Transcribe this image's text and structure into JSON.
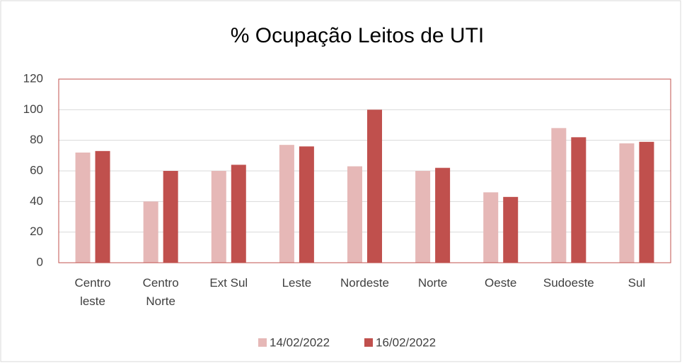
{
  "chart_data": {
    "type": "bar",
    "title": "% Ocupação Leitos de UTI",
    "categories": [
      "Centro leste",
      "Centro Norte",
      "Ext Sul",
      "Leste",
      "Nordeste",
      "Norte",
      "Oeste",
      "Sudoeste",
      "Sul"
    ],
    "series": [
      {
        "name": "14/02/2022",
        "color": "#e6b8b7",
        "values": [
          72,
          40,
          60,
          77,
          63,
          60,
          46,
          88,
          78
        ]
      },
      {
        "name": "16/02/2022",
        "color": "#c0504d",
        "values": [
          73,
          60,
          64,
          76,
          100,
          62,
          43,
          82,
          79
        ]
      }
    ],
    "ylim": [
      0,
      120
    ],
    "yticks": [
      0,
      20,
      40,
      60,
      80,
      100,
      120
    ],
    "grid": true,
    "legend": "bottom"
  }
}
